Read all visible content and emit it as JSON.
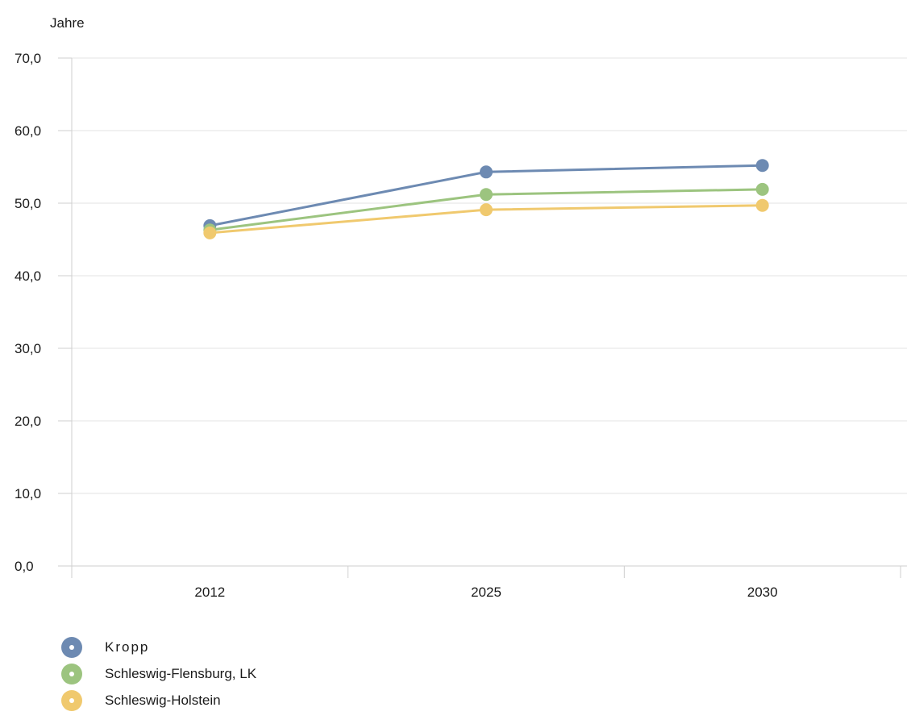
{
  "chart_data": {
    "type": "line",
    "ylabel": "Jahre",
    "categories": [
      "2012",
      "2025",
      "2030"
    ],
    "ylim": [
      0,
      70
    ],
    "yticks": [
      "0,0",
      "10,0",
      "20,0",
      "30,0",
      "40,0",
      "50,0",
      "60,0",
      "70,0"
    ],
    "grid": true,
    "legend_position": "bottom-left",
    "series": [
      {
        "name": "Kropp",
        "values": [
          46.9,
          54.3,
          55.2
        ],
        "color": "#6d8ab2"
      },
      {
        "name": "Schleswig-Flensburg, LK",
        "values": [
          46.3,
          51.2,
          51.9
        ],
        "color": "#9cc47f"
      },
      {
        "name": "Schleswig-Holstein",
        "values": [
          45.9,
          49.1,
          49.7
        ],
        "color": "#f0c96e"
      }
    ]
  }
}
